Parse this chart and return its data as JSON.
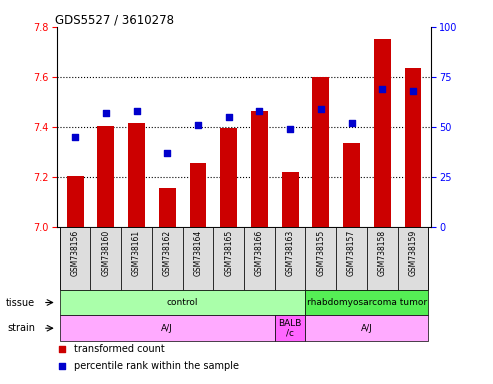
{
  "title": "GDS5527 / 3610278",
  "samples": [
    "GSM738156",
    "GSM738160",
    "GSM738161",
    "GSM738162",
    "GSM738164",
    "GSM738165",
    "GSM738166",
    "GSM738163",
    "GSM738155",
    "GSM738157",
    "GSM738158",
    "GSM738159"
  ],
  "bar_values": [
    7.205,
    7.405,
    7.415,
    7.155,
    7.255,
    7.395,
    7.465,
    7.22,
    7.6,
    7.335,
    7.75,
    7.635
  ],
  "percentile_dots": [
    45,
    57,
    58,
    37,
    51,
    55,
    58,
    49,
    59,
    52,
    69,
    68
  ],
  "bar_color": "#CC0000",
  "dot_color": "#0000CC",
  "ylim_left": [
    7.0,
    7.8
  ],
  "ylim_right": [
    0,
    100
  ],
  "yticks_left": [
    7.0,
    7.2,
    7.4,
    7.6,
    7.8
  ],
  "yticks_right": [
    0,
    25,
    50,
    75,
    100
  ],
  "grid_lines": [
    7.2,
    7.4,
    7.6
  ],
  "tissue_groups": [
    {
      "text": "control",
      "start": 0,
      "end": 7,
      "color": "#AAFFAA"
    },
    {
      "text": "rhabdomyosarcoma tumor",
      "start": 8,
      "end": 11,
      "color": "#55EE55"
    }
  ],
  "strain_groups": [
    {
      "text": "A/J",
      "start": 0,
      "end": 6,
      "color": "#FFAAFF"
    },
    {
      "text": "BALB\n/c",
      "start": 7,
      "end": 7,
      "color": "#FF66FF"
    },
    {
      "text": "A/J",
      "start": 8,
      "end": 11,
      "color": "#FFAAFF"
    }
  ],
  "background_color": "#FFFFFF",
  "tissue_row_label": "tissue",
  "strain_row_label": "strain",
  "legend_red_label": "transformed count",
  "legend_blue_label": "percentile rank within the sample"
}
